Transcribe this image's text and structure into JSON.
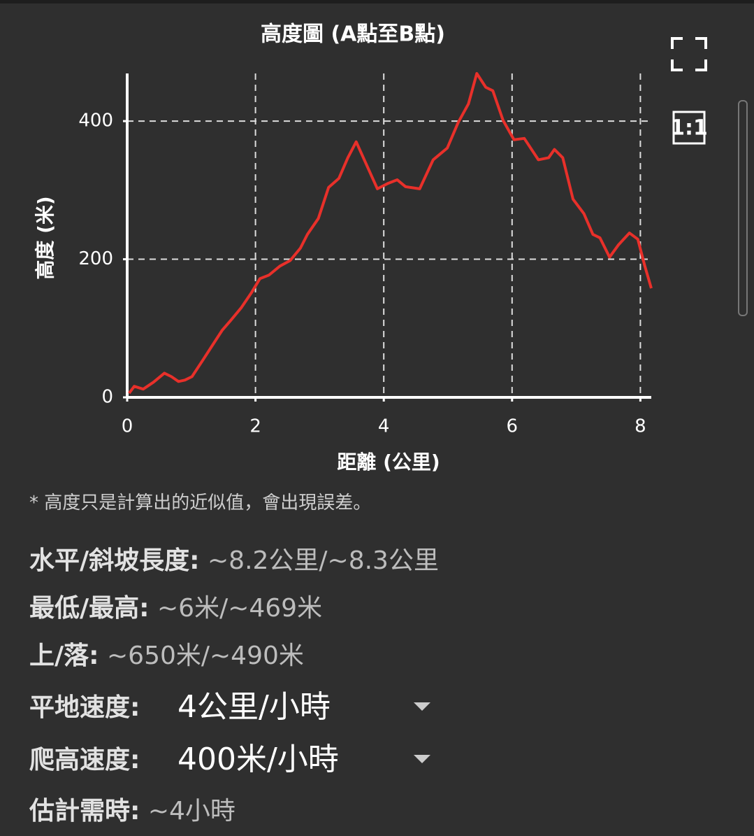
{
  "chart_data": {
    "type": "line",
    "title": "高度圖 (A點至B點)",
    "x_label": "距離 (公里)",
    "y_label": "高度 (米)",
    "x": [
      0.03,
      0.11,
      0.25,
      0.41,
      0.58,
      0.69,
      0.8,
      0.9,
      1.01,
      1.18,
      1.34,
      1.48,
      1.61,
      1.78,
      1.94,
      2.07,
      2.21,
      2.38,
      2.54,
      2.7,
      2.81,
      2.98,
      3.14,
      3.3,
      3.44,
      3.57,
      3.73,
      3.9,
      4.07,
      4.21,
      4.34,
      4.56,
      4.77,
      4.99,
      5.16,
      5.32,
      5.45,
      5.59,
      5.7,
      5.86,
      6.03,
      6.19,
      6.41,
      6.57,
      6.66,
      6.79,
      6.95,
      7.12,
      7.26,
      7.37,
      7.52,
      7.66,
      7.83,
      7.96,
      8.07,
      8.17
    ],
    "values": [
      6,
      16,
      12,
      22,
      35,
      30,
      23,
      25,
      30,
      54,
      77,
      97,
      111,
      130,
      152,
      172,
      177,
      190,
      198,
      216,
      236,
      259,
      304,
      317,
      347,
      370,
      337,
      302,
      310,
      315,
      305,
      302,
      344,
      361,
      398,
      425,
      469,
      449,
      444,
      401,
      373,
      375,
      344,
      347,
      359,
      347,
      287,
      266,
      236,
      231,
      203,
      221,
      238,
      229,
      190,
      158
    ],
    "color": "#e8302a",
    "xlim": [
      0,
      8.17
    ],
    "ylim": [
      0,
      469
    ],
    "xticks": [
      0,
      2,
      4,
      6,
      8
    ],
    "yticks": [
      0,
      200,
      400
    ],
    "grid": true
  },
  "ratio_button": "1:1",
  "note": "* 高度只是計算出的近似值，會出現誤差。",
  "stats": [
    {
      "label": "水平/斜坡長度:",
      "value": "~8.2公里/~8.3公里"
    },
    {
      "label": "最低/最高:",
      "value": "~6米/~469米"
    },
    {
      "label": "上/落:",
      "value": "~650米/~490米"
    }
  ],
  "speeds": [
    {
      "label": "平地速度:",
      "value": "4公里/小時"
    },
    {
      "label": "爬高速度:",
      "value": "400米/小時"
    }
  ],
  "estimate": {
    "label": "估計需時:",
    "value": "~4小時"
  }
}
